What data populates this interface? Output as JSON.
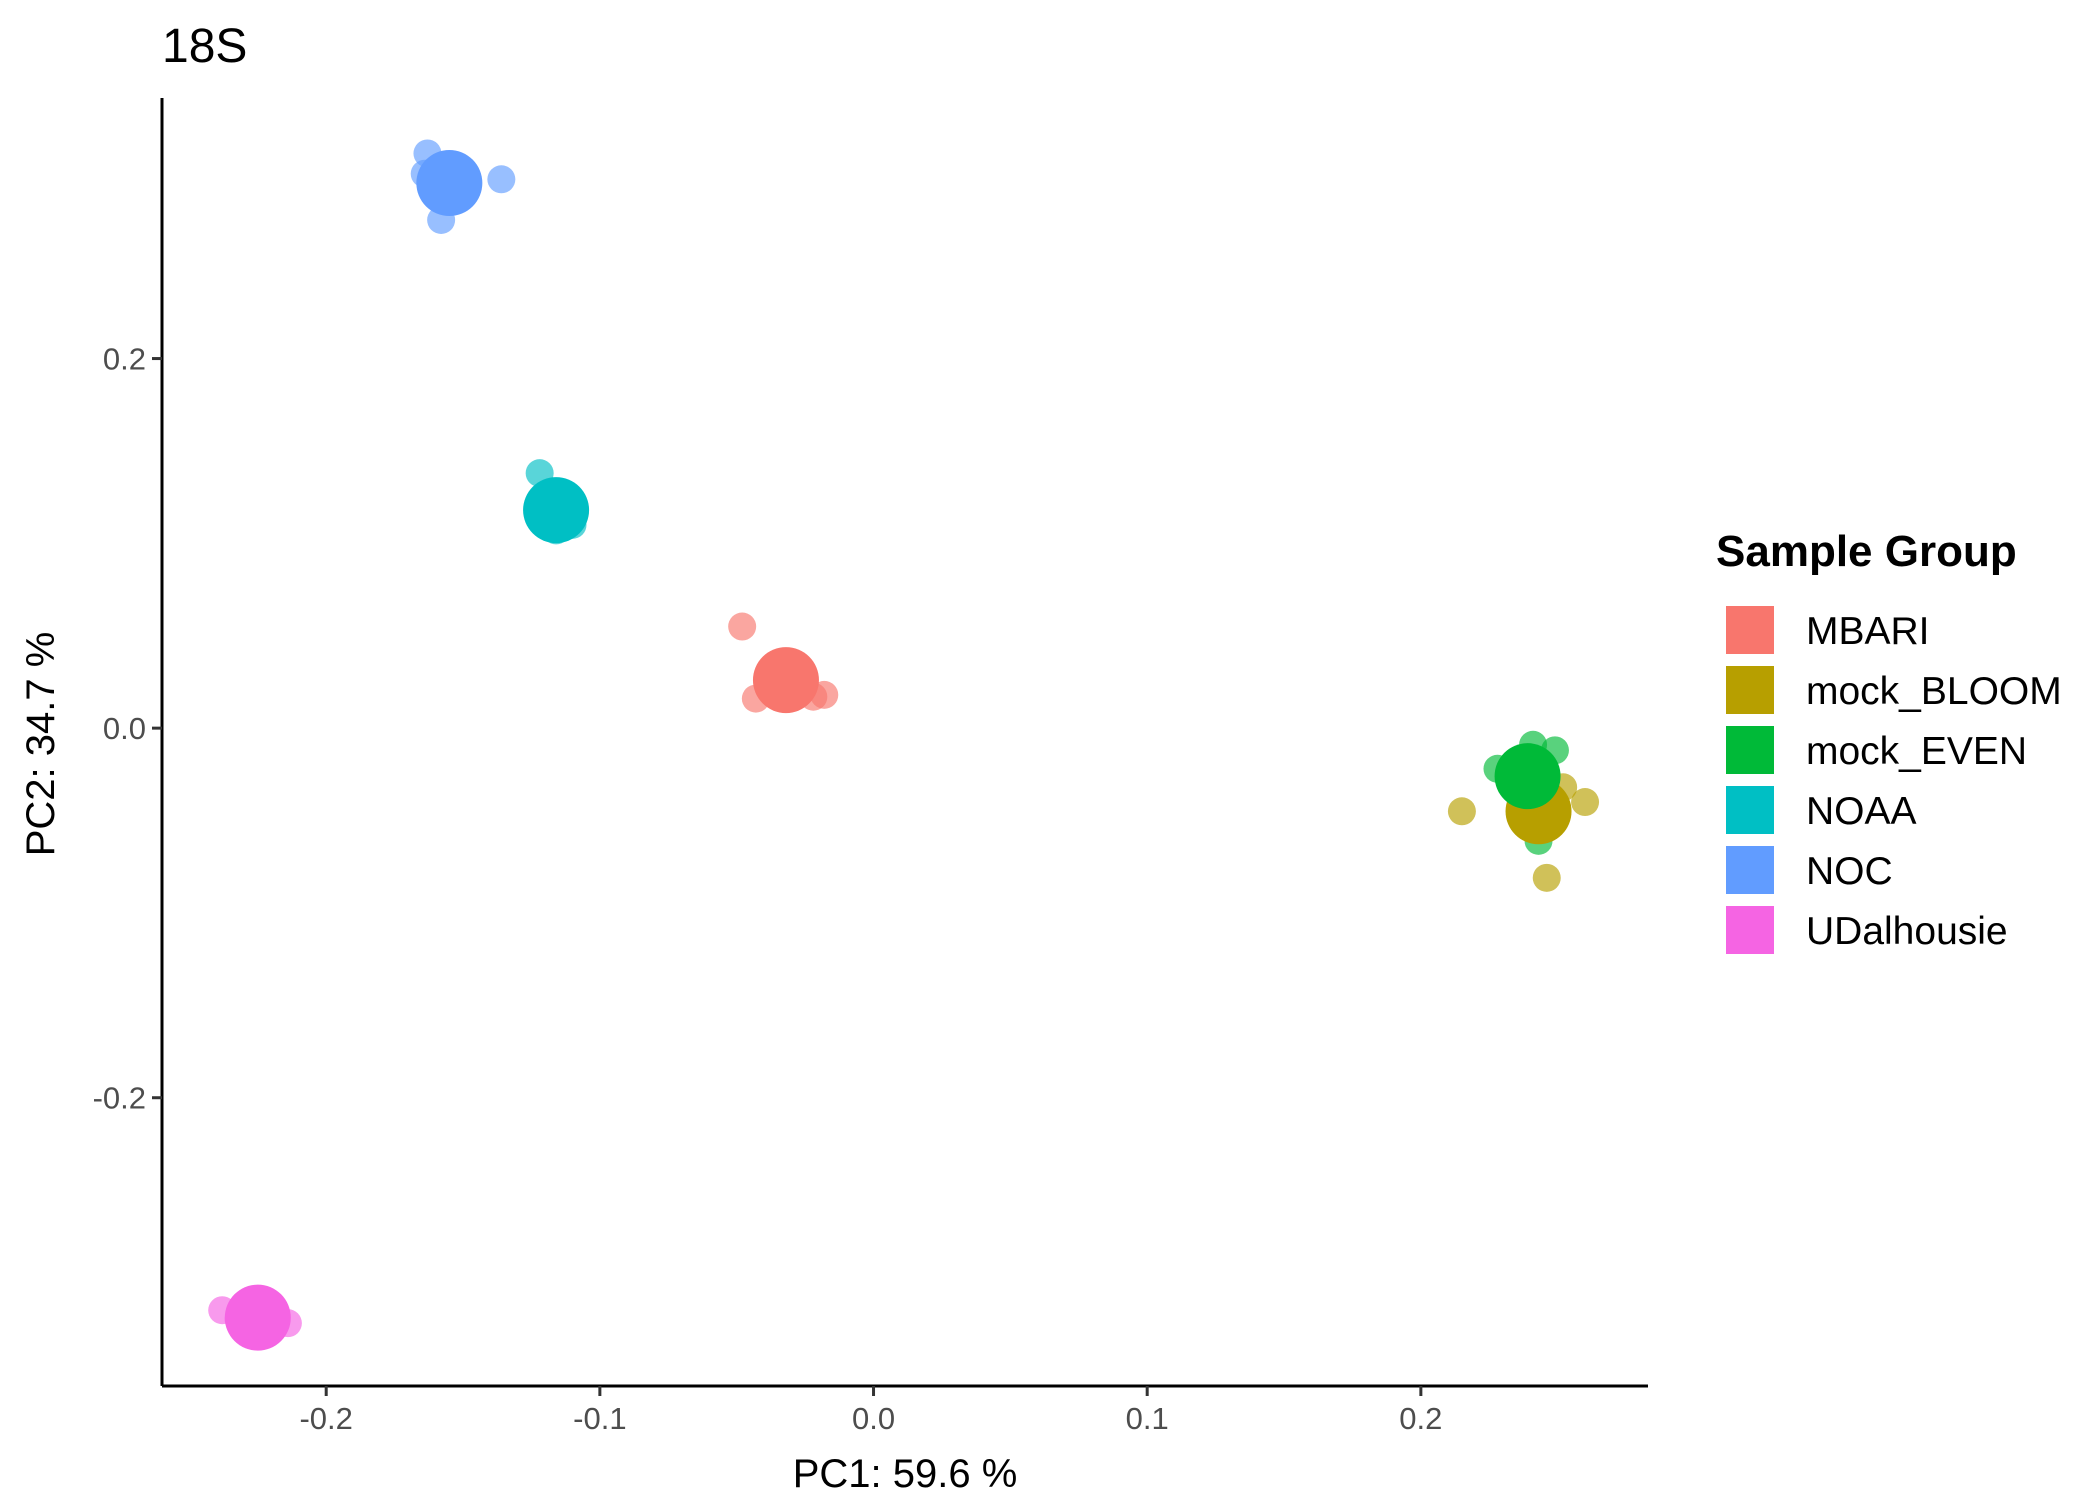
{
  "chart_data": {
    "type": "scatter",
    "title": "18S",
    "xlabel": "PC1:  59.6 %",
    "ylabel": "PC2:  34.7 %",
    "xlim": [
      -0.26,
      0.283
    ],
    "ylim": [
      -0.356,
      0.341
    ],
    "x_ticks": [
      {
        "value": -0.2,
        "label": "-0.2"
      },
      {
        "value": -0.1,
        "label": "-0.1"
      },
      {
        "value": 0.0,
        "label": "0.0"
      },
      {
        "value": 0.1,
        "label": "0.1"
      },
      {
        "value": 0.2,
        "label": "0.2"
      }
    ],
    "y_ticks": [
      {
        "value": 0.2,
        "label": "0.2"
      },
      {
        "value": 0.0,
        "label": "0.0"
      },
      {
        "value": -0.2,
        "label": "-0.2"
      }
    ],
    "grid": false,
    "legend": {
      "title": "Sample Group",
      "position": "right"
    },
    "series": [
      {
        "name": "MBARI",
        "color": "#F8766D",
        "centroid": {
          "x": -0.032,
          "y": 0.026
        },
        "points": [
          {
            "x": -0.048,
            "y": 0.055
          },
          {
            "x": -0.043,
            "y": 0.016
          },
          {
            "x": -0.022,
            "y": 0.017
          },
          {
            "x": -0.018,
            "y": 0.018
          },
          {
            "x": -0.032,
            "y": 0.02
          }
        ]
      },
      {
        "name": "mock_BLOOM",
        "color": "#B79F00",
        "centroid": {
          "x": 0.243,
          "y": -0.045
        },
        "points": [
          {
            "x": 0.215,
            "y": -0.045
          },
          {
            "x": 0.246,
            "y": -0.081
          },
          {
            "x": 0.26,
            "y": -0.04
          },
          {
            "x": 0.252,
            "y": -0.032
          },
          {
            "x": 0.244,
            "y": -0.05
          }
        ]
      },
      {
        "name": "mock_EVEN",
        "color": "#00BA38",
        "centroid": {
          "x": 0.239,
          "y": -0.026
        },
        "points": [
          {
            "x": 0.241,
            "y": -0.009
          },
          {
            "x": 0.249,
            "y": -0.012
          },
          {
            "x": 0.228,
            "y": -0.022
          },
          {
            "x": 0.243,
            "y": -0.061
          },
          {
            "x": 0.238,
            "y": -0.03
          }
        ]
      },
      {
        "name": "NOAA",
        "color": "#00BFC4",
        "centroid": {
          "x": -0.116,
          "y": 0.118
        },
        "points": [
          {
            "x": -0.122,
            "y": 0.138
          },
          {
            "x": -0.11,
            "y": 0.11
          },
          {
            "x": -0.116,
            "y": 0.107
          },
          {
            "x": -0.12,
            "y": 0.12
          }
        ]
      },
      {
        "name": "NOC",
        "color": "#619CFF",
        "centroid": {
          "x": -0.155,
          "y": 0.295
        },
        "points": [
          {
            "x": -0.163,
            "y": 0.311
          },
          {
            "x": -0.136,
            "y": 0.297
          },
          {
            "x": -0.158,
            "y": 0.275
          },
          {
            "x": -0.164,
            "y": 0.3
          },
          {
            "x": -0.15,
            "y": 0.29
          }
        ]
      },
      {
        "name": "UDalhousie",
        "color": "#F564E3",
        "centroid": {
          "x": -0.225,
          "y": -0.319
        },
        "points": [
          {
            "x": -0.238,
            "y": -0.315
          },
          {
            "x": -0.214,
            "y": -0.322
          },
          {
            "x": -0.22,
            "y": -0.317
          },
          {
            "x": -0.232,
            "y": -0.32
          },
          {
            "x": -0.228,
            "y": -0.312
          }
        ]
      }
    ]
  }
}
